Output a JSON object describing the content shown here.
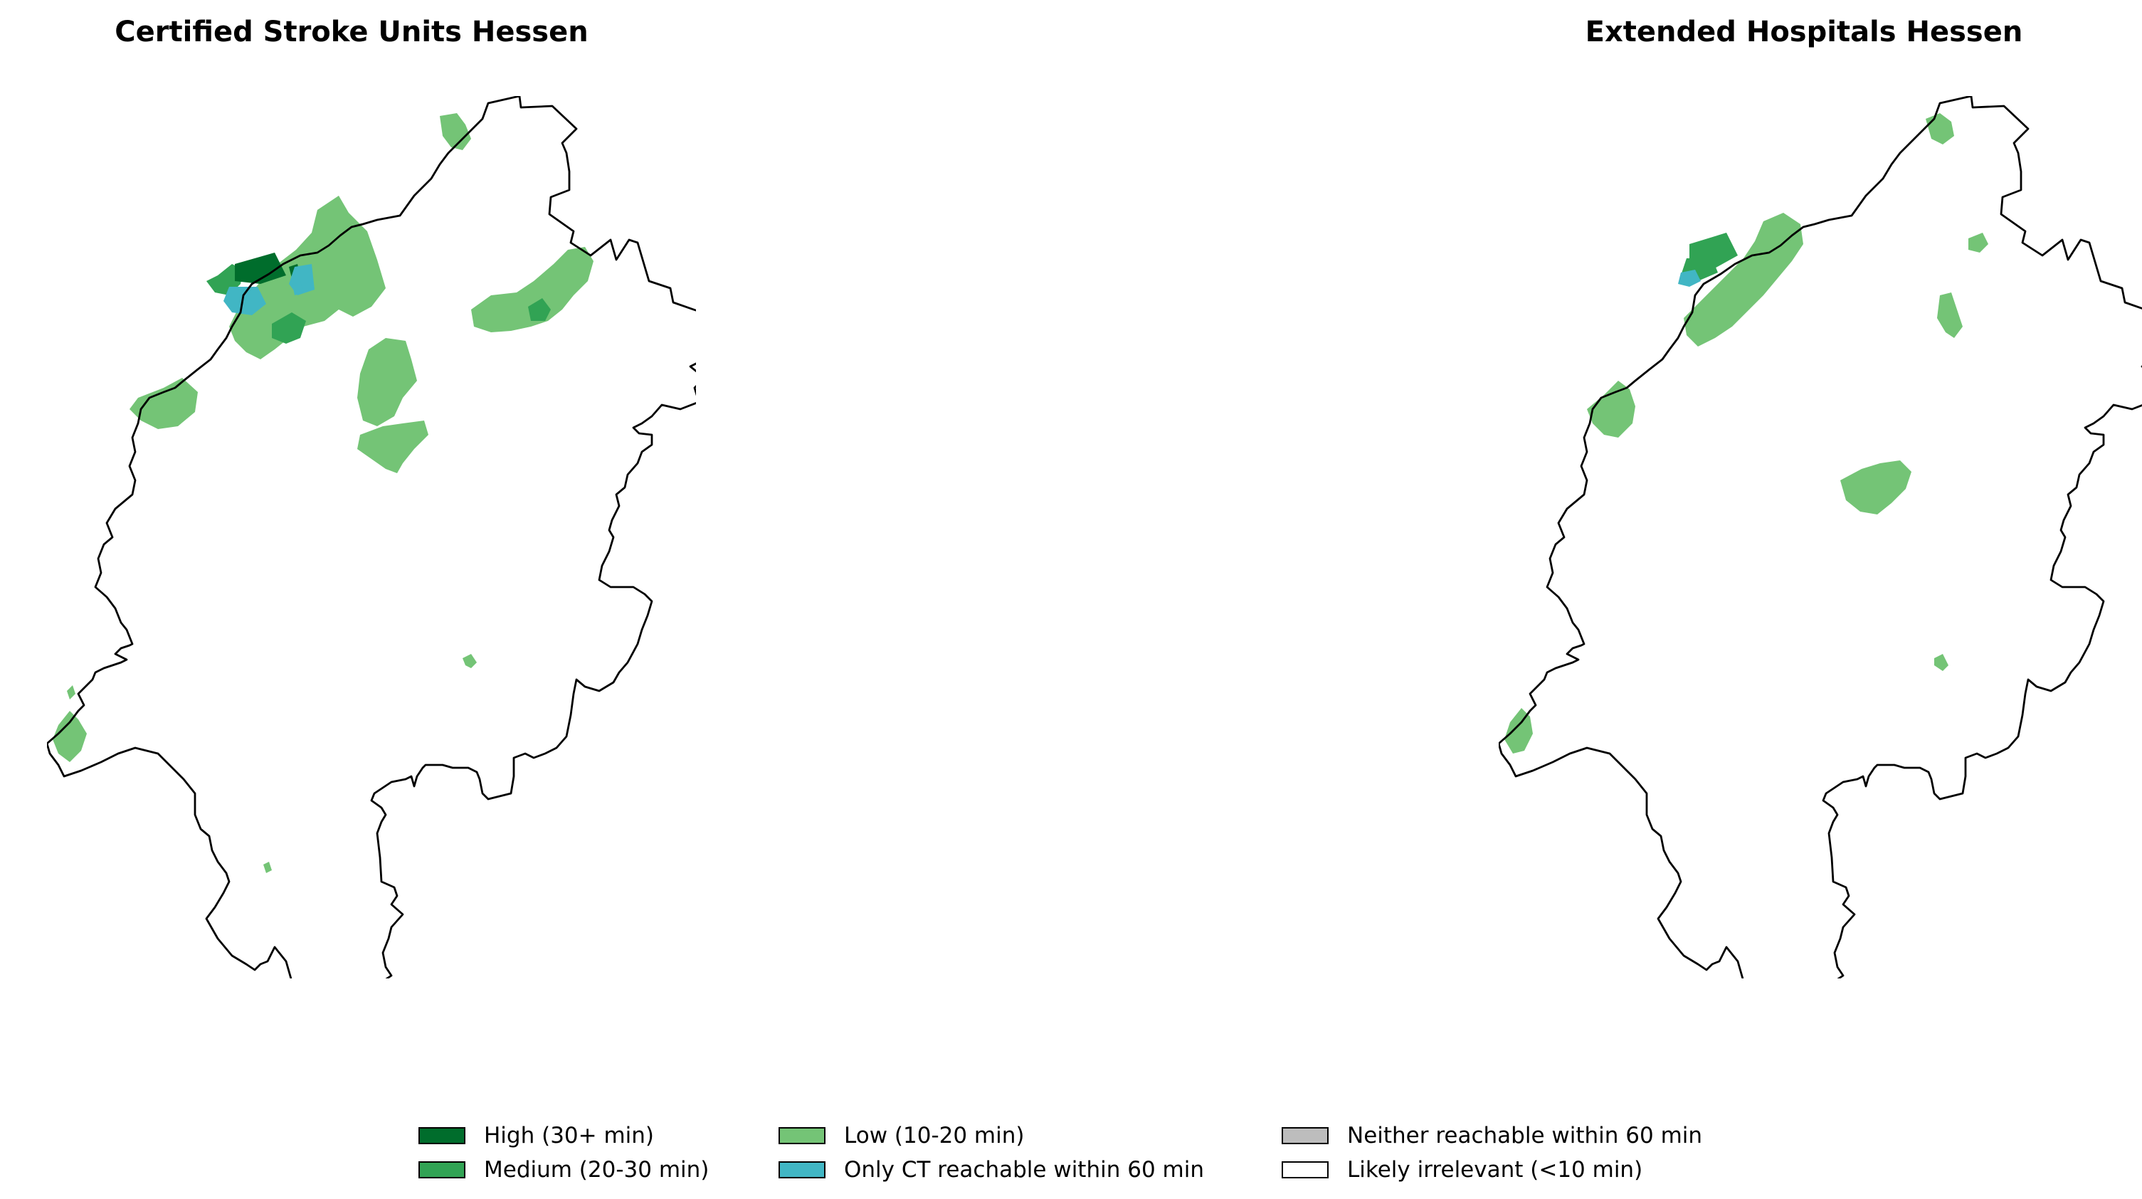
{
  "maps": [
    {
      "title": "Certified Stroke Units Hessen",
      "region": "Hessen",
      "patches": [
        {
          "category": "low"
        },
        {
          "category": "low"
        },
        {
          "category": "low"
        },
        {
          "category": "low"
        },
        {
          "category": "low"
        },
        {
          "category": "low"
        },
        {
          "category": "low"
        },
        {
          "category": "low"
        },
        {
          "category": "low"
        },
        {
          "category": "low"
        },
        {
          "category": "low"
        },
        {
          "category": "medium"
        },
        {
          "category": "medium"
        },
        {
          "category": "medium"
        },
        {
          "category": "high"
        },
        {
          "category": "high"
        },
        {
          "category": "ct_only"
        },
        {
          "category": "ct_only"
        },
        {
          "category": "ct_only"
        }
      ]
    },
    {
      "title": "Extended Hospitals Hessen",
      "region": "Hessen",
      "patches": [
        {
          "category": "low"
        },
        {
          "category": "low"
        },
        {
          "category": "low"
        },
        {
          "category": "low"
        },
        {
          "category": "low"
        },
        {
          "category": "low"
        },
        {
          "category": "low"
        },
        {
          "category": "low"
        },
        {
          "category": "low"
        },
        {
          "category": "medium"
        },
        {
          "category": "medium"
        },
        {
          "category": "ct_only"
        }
      ]
    }
  ],
  "legend": [
    {
      "key": "high",
      "label": "High (30+ min)",
      "color": "#006d2c"
    },
    {
      "key": "medium",
      "label": "Medium (20-30 min)",
      "color": "#31a354"
    },
    {
      "key": "low",
      "label": "Low (10-20 min)",
      "color": "#74c476"
    },
    {
      "key": "ct_only",
      "label": "Only CT reachable within 60 min",
      "color": "#41b6c4"
    },
    {
      "key": "neither",
      "label": "Neither reachable within 60 min",
      "color": "#bdbdbd"
    },
    {
      "key": "irrelevant",
      "label": "Likely irrelevant (<10 min)",
      "color": "#ffffff"
    }
  ]
}
